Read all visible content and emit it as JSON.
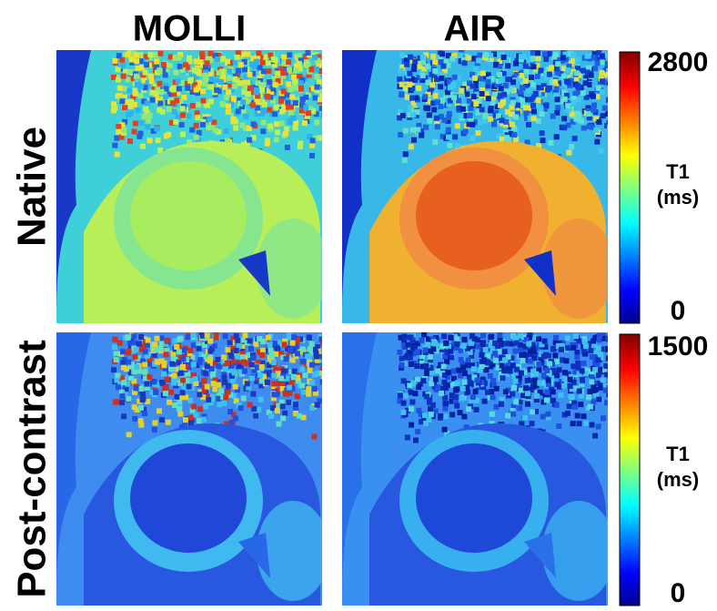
{
  "columns": [
    "MOLLI",
    "AIR"
  ],
  "rows": [
    "Native",
    "Post-contrast"
  ],
  "colorbars": [
    {
      "max": 2800,
      "min": 0,
      "label": [
        "T1",
        "(ms)"
      ]
    },
    {
      "max": 1500,
      "min": 0,
      "label": [
        "T1",
        "(ms)"
      ]
    }
  ]
}
